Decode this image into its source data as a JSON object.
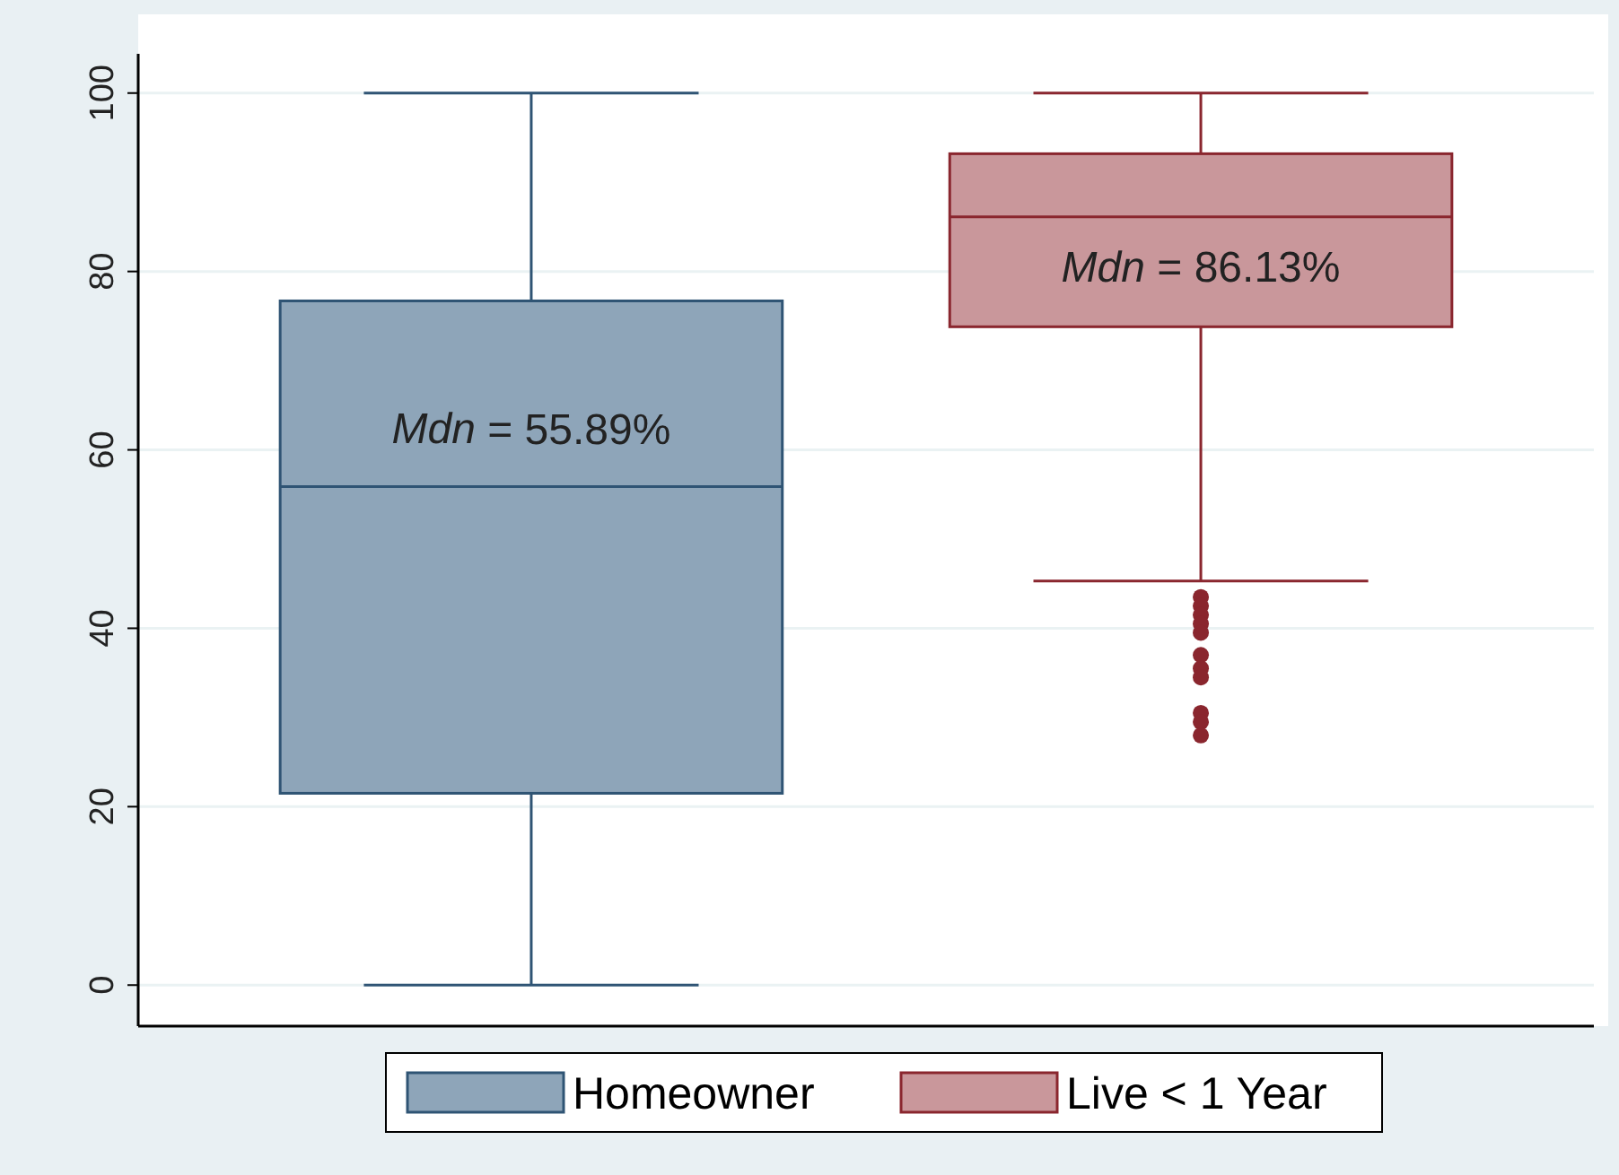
{
  "chart_data": {
    "type": "box",
    "categories": [
      null,
      null
    ],
    "series": [
      {
        "name": "Homeowner",
        "color": "#8ea5b9",
        "boxes": [
          {
            "low": 0,
            "q1": 21.5,
            "median": 55.89,
            "q3": 76.7,
            "high": 100
          },
          null
        ]
      },
      {
        "name": "Live < 1 Year",
        "color": "#c9979b",
        "boxes": [
          null,
          {
            "low": 45.3,
            "q1": 73.8,
            "median": 86.13,
            "q3": 93.2,
            "high": 100,
            "outliers": [
              43.5,
              42.5,
              41.5,
              40.5,
              39.5,
              37,
              35.5,
              34.5,
              30.5,
              29.5,
              28
            ]
          }
        ]
      }
    ],
    "ylim": [
      -4.6,
      104.4
    ],
    "yticks": [
      0,
      20,
      40,
      60,
      80,
      100
    ],
    "grid": "y",
    "legend": "bottom",
    "annotations": [
      "Mdn = 55.89%",
      "Mdn = 86.13%"
    ]
  }
}
